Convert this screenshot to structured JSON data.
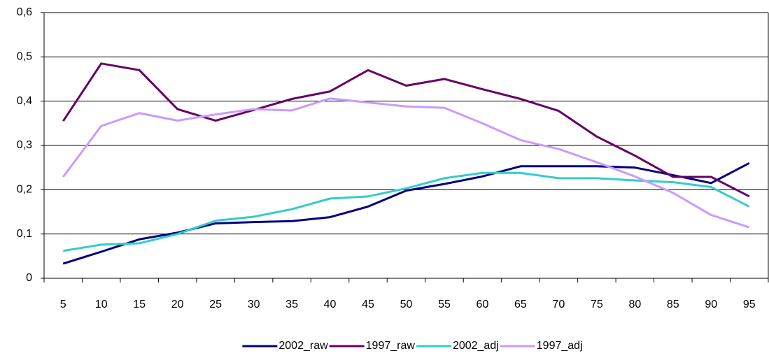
{
  "chart_data": {
    "type": "line",
    "categories": [
      5,
      10,
      15,
      20,
      25,
      30,
      35,
      40,
      45,
      50,
      55,
      60,
      65,
      70,
      75,
      80,
      85,
      90,
      95
    ],
    "series": [
      {
        "name": "2002_raw",
        "color": "#000080",
        "values": [
          0.033,
          0.06,
          0.088,
          0.103,
          0.124,
          0.127,
          0.129,
          0.138,
          0.162,
          0.198,
          0.213,
          0.23,
          0.253,
          0.253,
          0.253,
          0.25,
          0.233,
          0.215,
          0.26
        ]
      },
      {
        "name": "1997_raw",
        "color": "#660066",
        "values": [
          0.355,
          0.485,
          0.47,
          0.382,
          0.356,
          0.38,
          0.405,
          0.422,
          0.47,
          0.435,
          0.45,
          0.427,
          0.405,
          0.378,
          0.32,
          0.277,
          0.229,
          0.229,
          0.185
        ]
      },
      {
        "name": "2002_adj",
        "color": "#33cccc",
        "values": [
          0.062,
          0.076,
          0.079,
          0.1,
          0.13,
          0.139,
          0.156,
          0.18,
          0.185,
          0.203,
          0.226,
          0.238,
          0.238,
          0.226,
          0.226,
          0.221,
          0.217,
          0.206,
          0.162
        ]
      },
      {
        "name": "1997_adj",
        "color": "#cc99ff",
        "values": [
          0.229,
          0.344,
          0.373,
          0.356,
          0.37,
          0.382,
          0.379,
          0.406,
          0.397,
          0.388,
          0.385,
          0.35,
          0.312,
          0.292,
          0.262,
          0.23,
          0.193,
          0.143,
          0.115
        ]
      }
    ],
    "ylim": [
      0,
      0.6
    ],
    "yticks": [
      0,
      {
        "value": 0.1,
        "label": "0,1"
      },
      {
        "value": 0.2,
        "label": "0,2"
      },
      {
        "value": 0.3,
        "label": "0,3"
      },
      {
        "value": 0.4,
        "label": "0,4"
      },
      {
        "value": 0.5,
        "label": "0,5"
      },
      {
        "value": 0.6,
        "label": "0,6"
      }
    ],
    "grid": true,
    "legend": "bottom"
  }
}
